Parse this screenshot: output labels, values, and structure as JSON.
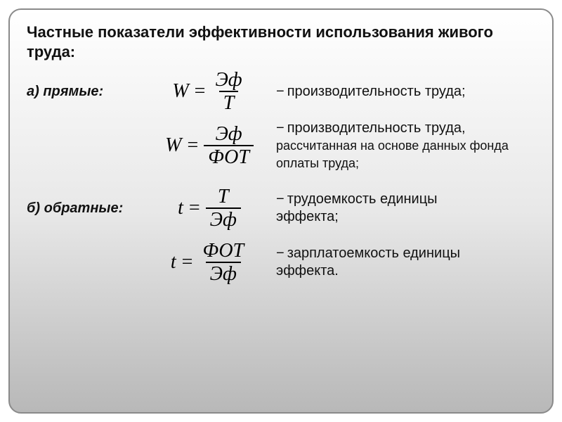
{
  "title": "Частные показатели эффективности использования живого труда:",
  "section_a": "а) прямые:",
  "section_b": "б) обратные:",
  "formulas": {
    "f1": {
      "lhs": "W",
      "num": "Эф",
      "den": "T"
    },
    "f2": {
      "lhs": "W",
      "num": "Эф",
      "den": "ФОТ"
    },
    "f3": {
      "lhs": "t",
      "num": "T",
      "den": "Эф"
    },
    "f4": {
      "lhs": "t",
      "num": "ФОТ",
      "den": "Эф"
    }
  },
  "desc": {
    "d1": "производительность труда;",
    "d2a": "производительность труда,",
    "d2b": "рассчитанная на основе данных фонда оплаты труда;",
    "d3a": "трудоемкость единицы",
    "d3b": "эффекта;",
    "d4a": "зарплатоемкость единицы",
    "d4b": "эффекта."
  },
  "colors": {
    "border": "#8a8a8a",
    "text": "#111111",
    "bg_top": "#ffffff",
    "bg_bottom": "#b8b8b8"
  },
  "typography": {
    "title_fontsize": 22,
    "body_fontsize": 20,
    "formula_fontsize": 28,
    "formula_family": "Times New Roman"
  }
}
